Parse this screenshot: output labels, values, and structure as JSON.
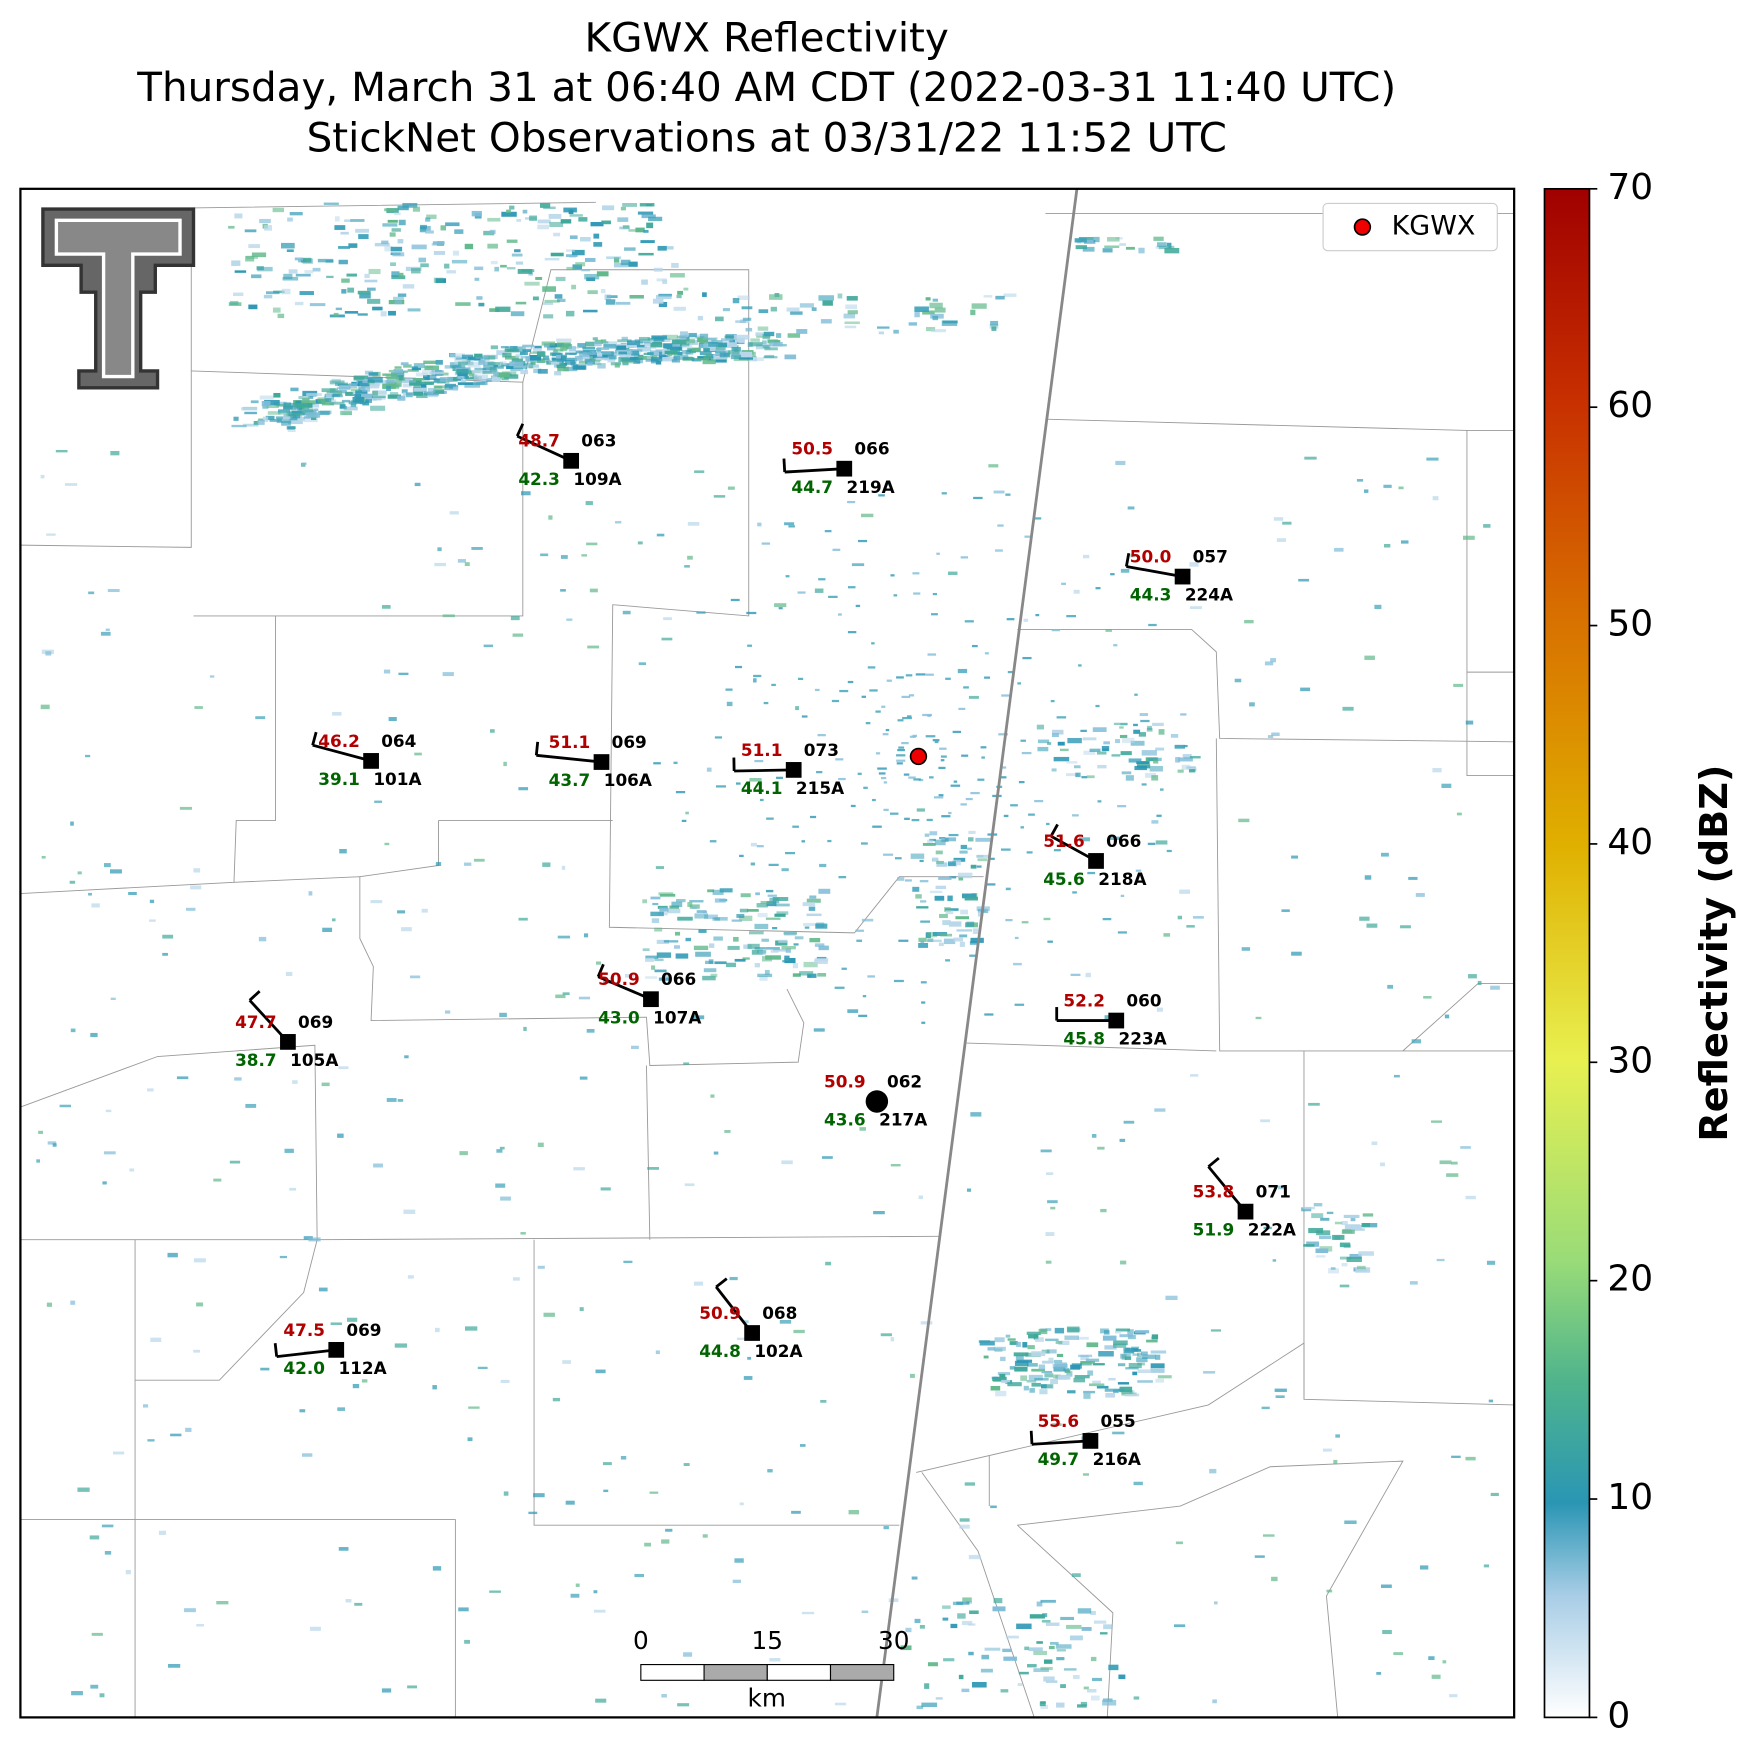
{
  "title": {
    "line1": "KGWX Reflectivity",
    "line2": "Thursday, March 31 at 06:40 AM CDT (2022-03-31 11:40 UTC)",
    "line3": "StickNet Observations at 03/31/22 11:52 UTC"
  },
  "legend": {
    "radar": "KGWX"
  },
  "stations": [
    {
      "id": "109A",
      "temperature": "48.7",
      "dewpoint": "42.3",
      "pressure": "063"
    },
    {
      "id": "219A",
      "temperature": "50.5",
      "dewpoint": "44.7",
      "pressure": "066"
    },
    {
      "id": "224A",
      "temperature": "50.0",
      "dewpoint": "44.3",
      "pressure": "057"
    },
    {
      "id": "101A",
      "temperature": "46.2",
      "dewpoint": "39.1",
      "pressure": "064"
    },
    {
      "id": "106A",
      "temperature": "51.1",
      "dewpoint": "43.7",
      "pressure": "069"
    },
    {
      "id": "215A",
      "temperature": "51.1",
      "dewpoint": "44.1",
      "pressure": "073"
    },
    {
      "id": "218A",
      "temperature": "51.6",
      "dewpoint": "45.6",
      "pressure": "066"
    },
    {
      "id": "107A",
      "temperature": "50.9",
      "dewpoint": "43.0",
      "pressure": "066"
    },
    {
      "id": "105A",
      "temperature": "47.7",
      "dewpoint": "38.7",
      "pressure": "069"
    },
    {
      "id": "223A",
      "temperature": "52.2",
      "dewpoint": "45.8",
      "pressure": "060"
    },
    {
      "id": "217A",
      "temperature": "50.9",
      "dewpoint": "43.6",
      "pressure": "062"
    },
    {
      "id": "222A",
      "temperature": "53.8",
      "dewpoint": "51.9",
      "pressure": "071"
    },
    {
      "id": "102A",
      "temperature": "50.9",
      "dewpoint": "44.8",
      "pressure": "068"
    },
    {
      "id": "112A",
      "temperature": "47.5",
      "dewpoint": "42.0",
      "pressure": "069"
    },
    {
      "id": "216A",
      "temperature": "55.6",
      "dewpoint": "49.7",
      "pressure": "055"
    }
  ],
  "colorbar": {
    "label": "Reflectivity (dBZ)",
    "range": [
      0,
      70
    ],
    "ticks": [
      0,
      10,
      20,
      30,
      40,
      50,
      60,
      70
    ]
  },
  "scale_bar": {
    "ticks": [
      0,
      15,
      30
    ],
    "unit": "km"
  }
}
